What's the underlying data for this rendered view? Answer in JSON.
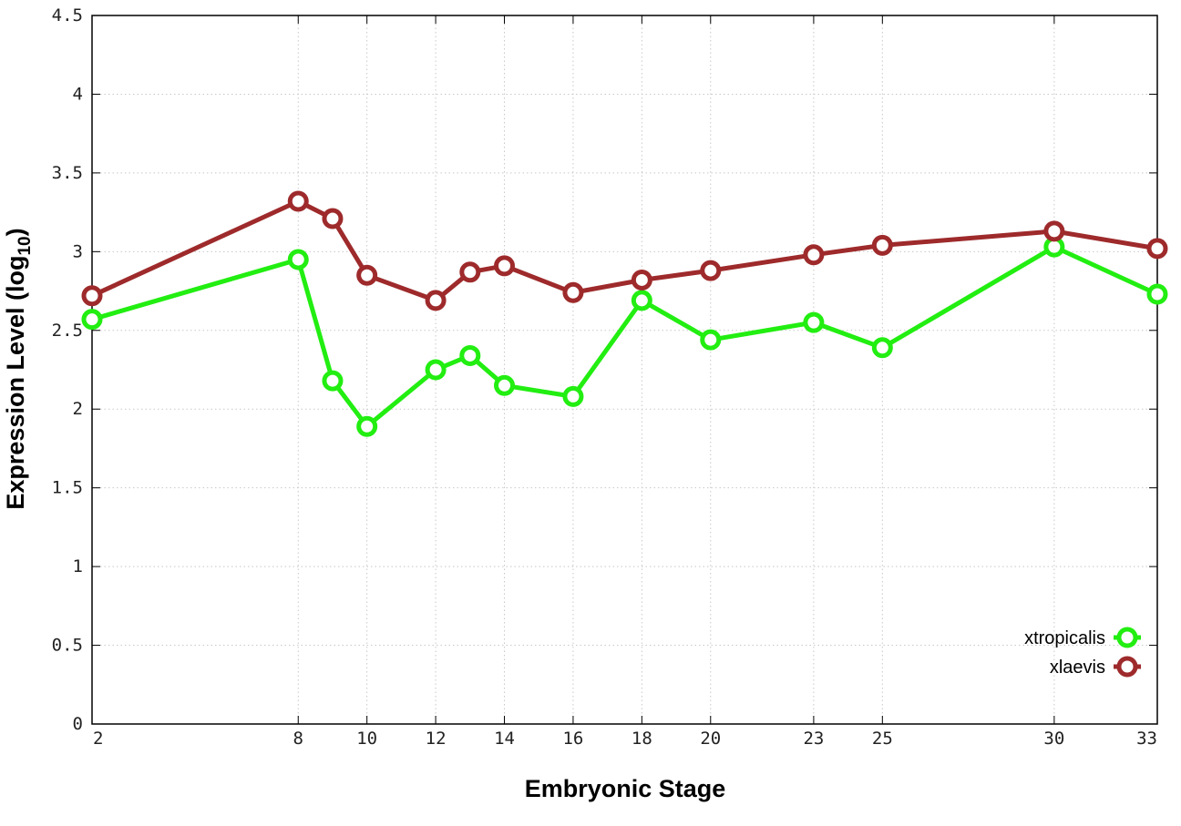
{
  "chart_data": {
    "type": "line",
    "xlabel": "Embryonic Stage",
    "ylabel": "Expression Level (log",
    "ylabel_sub": "10",
    "ylabel_end": ")",
    "x_ticks": [
      2,
      8,
      10,
      12,
      14,
      16,
      18,
      20,
      23,
      25,
      30,
      33
    ],
    "x_tick_labels": [
      "2",
      "8",
      "10",
      "12",
      "14",
      "16",
      "18",
      "20",
      "23",
      "25",
      "30",
      "33"
    ],
    "y_ticks": [
      0,
      0.5,
      1,
      1.5,
      2,
      2.5,
      3,
      3.5,
      4,
      4.5
    ],
    "y_tick_labels": [
      "0",
      "0.5",
      "1",
      "1.5",
      "2",
      "2.5",
      "3",
      "3.5",
      "4",
      "4.5"
    ],
    "xlim": [
      2,
      33
    ],
    "ylim": [
      0,
      4.5
    ],
    "grid": true,
    "legend_position": "bottom-right",
    "series": [
      {
        "name": "xtropicalis",
        "color": "#22ee11",
        "x": [
          2,
          8,
          9,
          10,
          12,
          13,
          14,
          16,
          18,
          20,
          23,
          25,
          30,
          33
        ],
        "values": [
          2.57,
          2.95,
          2.18,
          1.89,
          2.25,
          2.34,
          2.15,
          2.08,
          2.69,
          2.44,
          2.55,
          2.39,
          3.03,
          2.73
        ]
      },
      {
        "name": "xlaevis",
        "color": "#9e2a2b",
        "x": [
          2,
          8,
          9,
          10,
          12,
          13,
          14,
          16,
          18,
          20,
          23,
          25,
          30,
          33
        ],
        "values": [
          2.72,
          3.32,
          3.21,
          2.85,
          2.69,
          2.87,
          2.91,
          2.74,
          2.82,
          2.88,
          2.98,
          3.04,
          3.13,
          3.02
        ]
      }
    ]
  }
}
